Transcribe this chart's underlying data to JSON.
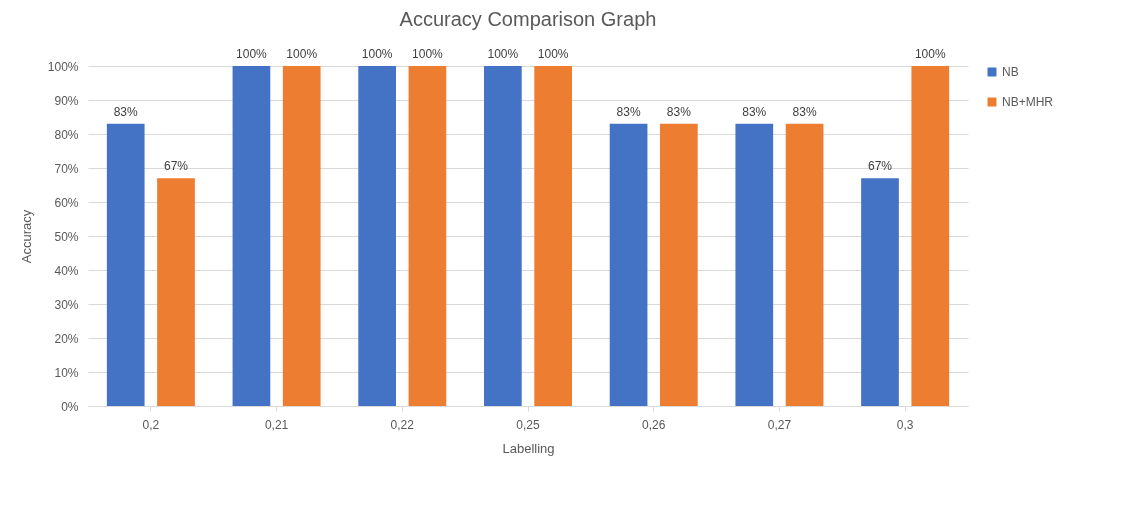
{
  "chart_data": {
    "type": "bar",
    "title": "Accuracy Comparison Graph",
    "xlabel": "Labelling",
    "ylabel": "Accuracy",
    "categories": [
      "0,2",
      "0,21",
      "0,22",
      "0,25",
      "0,26",
      "0,27",
      "0,3"
    ],
    "series": [
      {
        "name": "NB",
        "color": "#4472c4",
        "values": [
          83,
          100,
          100,
          100,
          83,
          83,
          67
        ],
        "value_labels": [
          "83%",
          "100%",
          "100%",
          "100%",
          "83%",
          "83%",
          "67%"
        ]
      },
      {
        "name": "NB+MHR",
        "color": "#ed7d31",
        "values": [
          67,
          100,
          100,
          100,
          83,
          83,
          100
        ],
        "value_labels": [
          "67%",
          "100%",
          "100%",
          "100%",
          "83%",
          "83%",
          "100%"
        ]
      }
    ],
    "ylim": [
      0,
      100
    ],
    "yticks": [
      {
        "value": 0,
        "label": "0%"
      },
      {
        "value": 10,
        "label": "10%"
      },
      {
        "value": 20,
        "label": "20%"
      },
      {
        "value": 30,
        "label": "30%"
      },
      {
        "value": 40,
        "label": "40%"
      },
      {
        "value": 50,
        "label": "50%"
      },
      {
        "value": 60,
        "label": "60%"
      },
      {
        "value": 70,
        "label": "70%"
      },
      {
        "value": 80,
        "label": "80%"
      },
      {
        "value": 90,
        "label": "90%"
      },
      {
        "value": 100,
        "label": "100%"
      }
    ],
    "grid": "y",
    "legend": "right"
  }
}
